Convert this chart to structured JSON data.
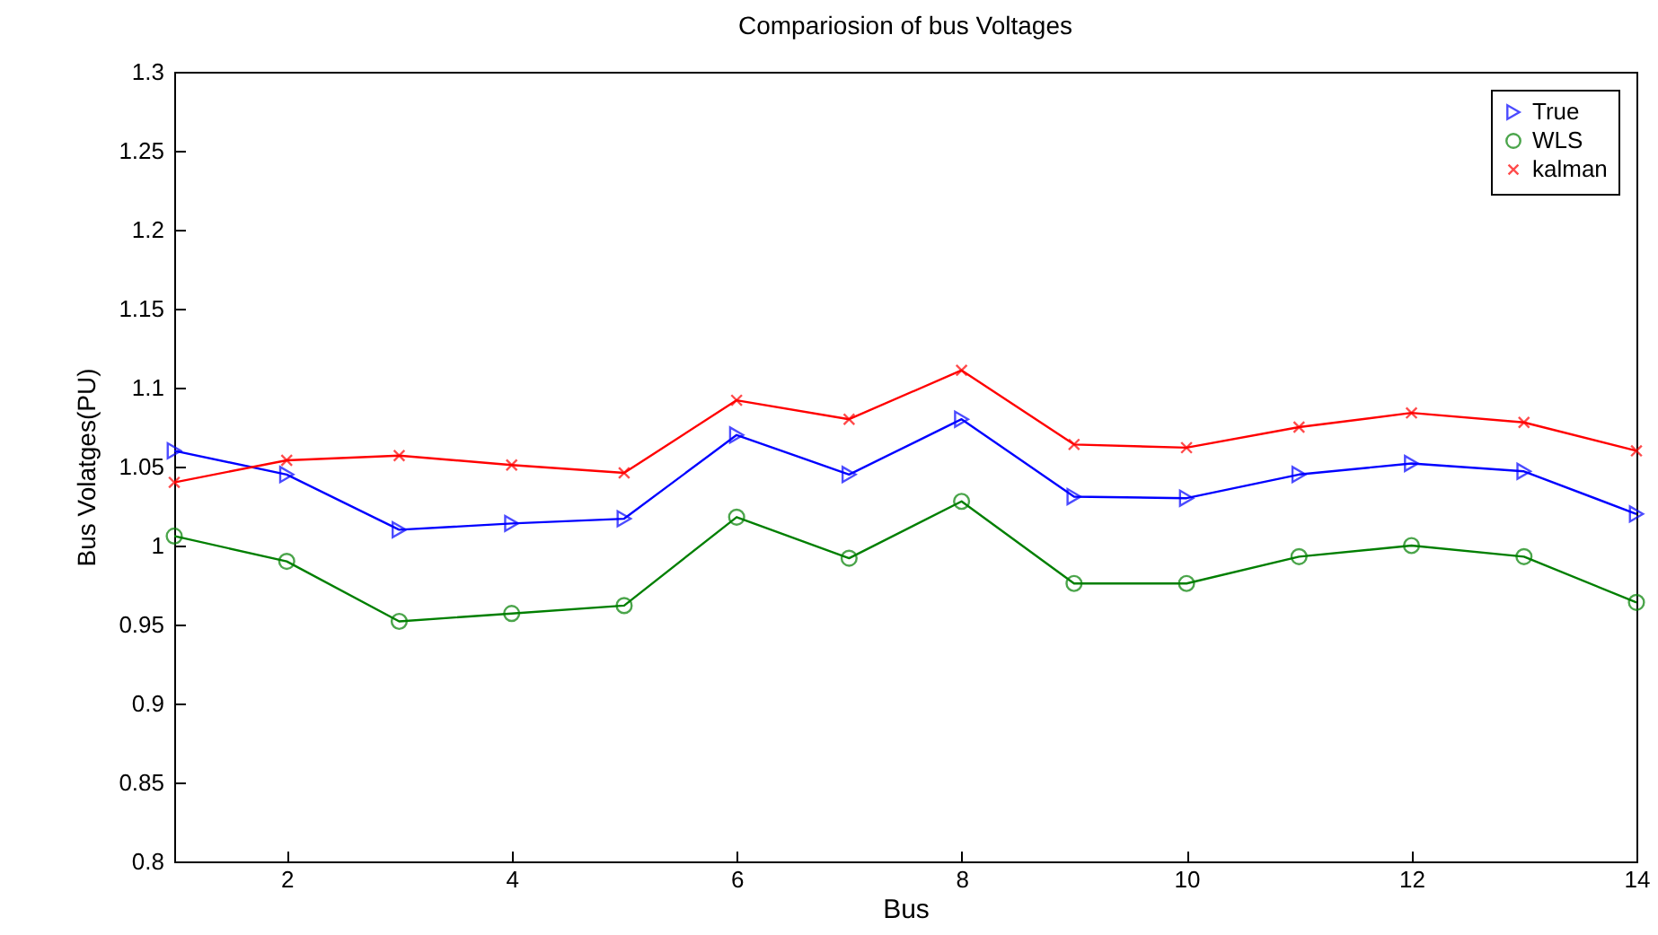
{
  "chart_data": {
    "type": "line",
    "title": "Compariosion of bus Voltages",
    "xlabel": "Bus",
    "ylabel": "Bus Volatges(PU)",
    "x": [
      1,
      2,
      3,
      4,
      5,
      6,
      7,
      8,
      9,
      10,
      11,
      12,
      13,
      14
    ],
    "series": [
      {
        "name": "True",
        "color": "#0000ff",
        "marker": "triangle",
        "values": [
          1.06,
          1.045,
          1.01,
          1.014,
          1.017,
          1.07,
          1.045,
          1.08,
          1.031,
          1.03,
          1.045,
          1.052,
          1.047,
          1.02
        ]
      },
      {
        "name": "WLS",
        "color": "#007f00",
        "marker": "circle",
        "values": [
          1.006,
          0.99,
          0.952,
          0.957,
          0.962,
          1.018,
          0.992,
          1.028,
          0.976,
          0.976,
          0.993,
          1.0,
          0.993,
          0.964
        ]
      },
      {
        "name": "kalman",
        "color": "#ff0000",
        "marker": "cross",
        "values": [
          1.04,
          1.054,
          1.057,
          1.051,
          1.046,
          1.092,
          1.08,
          1.111,
          1.064,
          1.062,
          1.075,
          1.084,
          1.078,
          1.06
        ]
      }
    ],
    "xlim": [
      1,
      14
    ],
    "xticks": [
      2,
      4,
      6,
      8,
      10,
      12,
      14
    ],
    "ylim": [
      0.8,
      1.3
    ],
    "yticks": [
      0.8,
      0.85,
      0.9,
      0.95,
      1,
      1.05,
      1.1,
      1.15,
      1.2,
      1.25,
      1.3
    ],
    "grid": false,
    "legend": "top right",
    "line_style": "solid"
  }
}
